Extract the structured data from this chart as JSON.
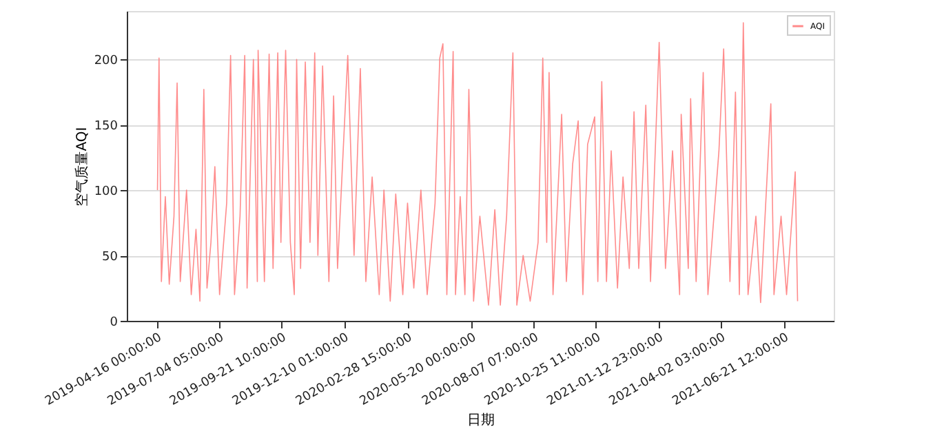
{
  "chart_data": {
    "type": "line",
    "xlabel": "日期",
    "ylabel": "空气质量AQI",
    "x": [
      "2019-04-17",
      "2019-04-19",
      "2019-04-22",
      "2019-04-27",
      "2019-05-02",
      "2019-05-08",
      "2019-05-12",
      "2019-05-16",
      "2019-05-24",
      "2019-05-30",
      "2019-06-05",
      "2019-06-10",
      "2019-06-15",
      "2019-06-19",
      "2019-06-24",
      "2019-06-29",
      "2019-07-05",
      "2019-07-14",
      "2019-07-19",
      "2019-07-24",
      "2019-07-31",
      "2019-08-06",
      "2019-08-09",
      "2019-08-17",
      "2019-08-22",
      "2019-08-23",
      "2019-08-31",
      "2019-09-06",
      "2019-09-11",
      "2019-09-17",
      "2019-09-21",
      "2019-09-27",
      "2019-10-03",
      "2019-10-08",
      "2019-10-11",
      "2019-10-16",
      "2019-10-22",
      "2019-10-28",
      "2019-11-03",
      "2019-11-07",
      "2019-11-13",
      "2019-11-21",
      "2019-11-27",
      "2019-12-02",
      "2019-12-15",
      "2019-12-23",
      "2019-12-31",
      "2020-01-07",
      "2020-01-15",
      "2020-01-24",
      "2020-01-30",
      "2020-02-07",
      "2020-02-14",
      "2020-02-23",
      "2020-02-29",
      "2020-03-08",
      "2020-03-17",
      "2020-03-25",
      "2020-04-04",
      "2020-04-10",
      "2020-04-14",
      "2020-04-19",
      "2020-04-27",
      "2020-04-30",
      "2020-05-06",
      "2020-05-12",
      "2020-05-17",
      "2020-05-23",
      "2020-05-31",
      "2020-06-11",
      "2020-06-19",
      "2020-06-26",
      "2020-07-04",
      "2020-07-12",
      "2020-07-17",
      "2020-07-25",
      "2020-08-03",
      "2020-08-13",
      "2020-08-19",
      "2020-08-24",
      "2020-08-27",
      "2020-09-01",
      "2020-09-12",
      "2020-09-18",
      "2020-09-26",
      "2020-10-03",
      "2020-10-09",
      "2020-10-15",
      "2020-10-24",
      "2020-10-28",
      "2020-11-02",
      "2020-11-08",
      "2020-11-14",
      "2020-11-22",
      "2020-11-29",
      "2020-12-07",
      "2020-12-13",
      "2020-12-19",
      "2020-12-28",
      "2021-01-03",
      "2021-01-14",
      "2021-01-22",
      "2021-01-31",
      "2021-02-09",
      "2021-02-11",
      "2021-02-20",
      "2021-02-23",
      "2021-03-02",
      "2021-03-11",
      "2021-03-17",
      "2021-03-31",
      "2021-04-06",
      "2021-04-14",
      "2021-04-21",
      "2021-04-26",
      "2021-05-01",
      "2021-05-07",
      "2021-05-17",
      "2021-05-23",
      "2021-06-05",
      "2021-06-09",
      "2021-06-18",
      "2021-06-25",
      "2021-07-06",
      "2021-07-09"
    ],
    "series": [
      {
        "name": "AQI",
        "color": "#ff7f7f",
        "values": [
          100,
          201,
          30,
          95,
          28,
          80,
          182,
          30,
          100,
          20,
          70,
          15,
          177,
          25,
          60,
          118,
          20,
          90,
          203,
          20,
          80,
          203,
          25,
          200,
          30,
          207,
          30,
          204,
          40,
          205,
          60,
          207,
          60,
          20,
          200,
          40,
          198,
          60,
          205,
          50,
          195,
          30,
          172,
          40,
          203,
          50,
          193,
          30,
          110,
          20,
          100,
          15,
          97,
          20,
          90,
          25,
          100,
          20,
          90,
          201,
          212,
          20,
          206,
          20,
          95,
          20,
          177,
          15,
          80,
          12,
          85,
          12,
          80,
          205,
          12,
          50,
          15,
          60,
          201,
          60,
          190,
          20,
          158,
          30,
          120,
          153,
          20,
          135,
          156,
          30,
          183,
          30,
          130,
          25,
          110,
          40,
          160,
          40,
          165,
          30,
          213,
          40,
          130,
          20,
          158,
          40,
          170,
          30,
          190,
          20,
          130,
          208,
          30,
          175,
          20,
          228,
          20,
          80,
          14,
          166,
          20,
          80,
          20,
          114,
          15
        ]
      }
    ],
    "xlim": [
      "2019-03-09",
      "2021-08-24"
    ],
    "xticks": [
      {
        "value": "2019-04-16T00:00",
        "label": "2019-04-16 00:00:00"
      },
      {
        "value": "2019-07-04T05:00",
        "label": "2019-07-04 05:00:00"
      },
      {
        "value": "2019-09-21T10:00",
        "label": "2019-09-21 10:00:00"
      },
      {
        "value": "2019-12-10T01:00",
        "label": "2019-12-10 01:00:00"
      },
      {
        "value": "2020-02-28T15:00",
        "label": "2020-02-28 15:00:00"
      },
      {
        "value": "2020-05-20T00:00",
        "label": "2020-05-20 00:00:00"
      },
      {
        "value": "2020-08-07T07:00",
        "label": "2020-08-07 07:00:00"
      },
      {
        "value": "2020-10-25T11:00",
        "label": "2020-10-25 11:00:00"
      },
      {
        "value": "2021-01-12T23:00",
        "label": "2021-01-12 23:00:00"
      },
      {
        "value": "2021-04-02T03:00",
        "label": "2021-04-02 03:00:00"
      },
      {
        "value": "2021-06-21T12:00",
        "label": "2021-06-21 12:00:00"
      }
    ],
    "ylim": [
      0,
      237
    ],
    "yticks": [
      0,
      50,
      100,
      150,
      200
    ],
    "grid": "y",
    "legend": "top right",
    "line_style": "solid",
    "marker": "none"
  }
}
